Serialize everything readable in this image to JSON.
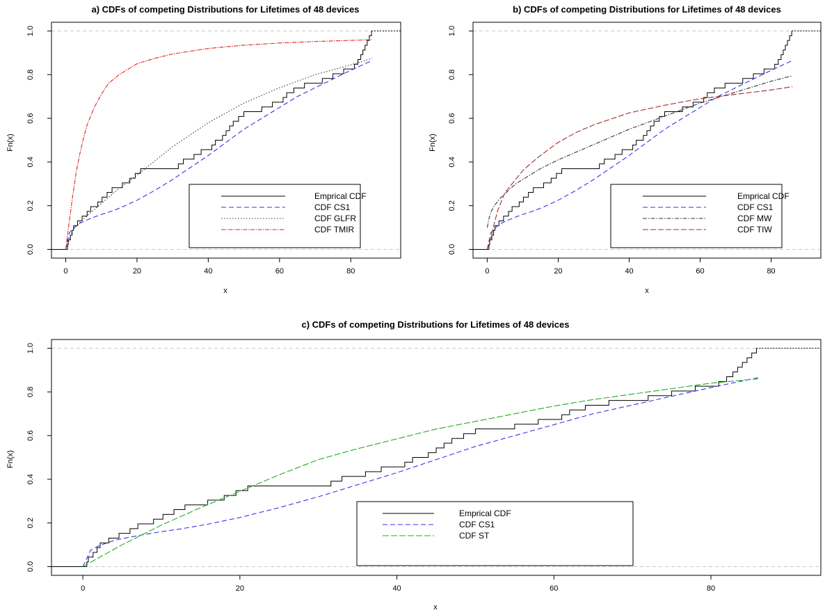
{
  "chart_data": [
    {
      "panel": "a",
      "type": "line",
      "title": "a) CDFs of competing Distributions for Lifetimes of 48 devices",
      "xlabel": "x",
      "ylabel": "Fn(x)",
      "xlim": [
        -4,
        94
      ],
      "ylim": [
        -0.04,
        1.04
      ],
      "xticks": [
        0,
        20,
        40,
        60,
        80
      ],
      "yticks": [
        0.0,
        0.2,
        0.4,
        0.6,
        0.8,
        1.0
      ],
      "xtick_labels": [
        "0",
        "20",
        "40",
        "60",
        "80"
      ],
      "ytick_labels": [
        "0.0",
        "0.2",
        "0.4",
        "0.6",
        "0.8",
        "1.0"
      ],
      "legend_position": "bottom-right",
      "grid": false,
      "series": [
        {
          "name": "Emprical CDF",
          "kind": "ecdf",
          "color": "#000000",
          "dash": "",
          "x": [
            0.5,
            0.7,
            1.3,
            1.8,
            2.2,
            3.3,
            4.6,
            6.0,
            7.0,
            9.0,
            10.2,
            11.6,
            13.0,
            15.9,
            18.0,
            19.5,
            21.0,
            31.6,
            33.0,
            36.0,
            38.0,
            41.0,
            42.0,
            44.0,
            45.0,
            46.0,
            47.0,
            48.5,
            50.0,
            55.0,
            58.0,
            61.0,
            62.0,
            64.0,
            67.0,
            72.0,
            75.0,
            78.0,
            81.0,
            82.0,
            82.8,
            83.4,
            84.0,
            84.6,
            85.2,
            85.8
          ]
        },
        {
          "name": "CDF CS1",
          "kind": "curve",
          "color": "#3333ee",
          "dash": "7,4",
          "x": [
            0,
            1,
            2,
            4,
            6,
            8,
            10,
            12,
            14,
            16,
            18,
            20,
            25,
            30,
            35,
            40,
            45,
            50,
            55,
            60,
            65,
            70,
            75,
            80,
            86
          ],
          "y": [
            0.0,
            0.075,
            0.095,
            0.12,
            0.135,
            0.148,
            0.16,
            0.17,
            0.182,
            0.195,
            0.21,
            0.225,
            0.27,
            0.32,
            0.375,
            0.43,
            0.49,
            0.55,
            0.6,
            0.65,
            0.7,
            0.74,
            0.78,
            0.82,
            0.865
          ]
        },
        {
          "name": "CDF GLFR",
          "kind": "curve",
          "color": "#333333",
          "dash": "1.5,2.5",
          "x": [
            0,
            2,
            5,
            10,
            15,
            20,
            30,
            40,
            50,
            60,
            70,
            80,
            86
          ],
          "y": [
            0.0,
            0.09,
            0.14,
            0.21,
            0.28,
            0.34,
            0.47,
            0.58,
            0.67,
            0.74,
            0.8,
            0.845,
            0.875
          ]
        },
        {
          "name": "CDF TMIR",
          "kind": "curve",
          "color": "#dd2222",
          "dash": "6,1.5,1.5,1.5",
          "x": [
            0,
            1,
            2,
            3,
            4,
            5,
            6,
            8,
            10,
            12,
            15,
            20,
            25,
            30,
            40,
            50,
            60,
            70,
            80,
            86
          ],
          "y": [
            0.0,
            0.13,
            0.25,
            0.36,
            0.44,
            0.51,
            0.57,
            0.65,
            0.71,
            0.76,
            0.8,
            0.85,
            0.875,
            0.895,
            0.92,
            0.935,
            0.945,
            0.952,
            0.957,
            0.96
          ]
        }
      ]
    },
    {
      "panel": "b",
      "type": "line",
      "title": "b) CDFs of competing Distributions for Lifetimes of 48 devices",
      "xlabel": "x",
      "ylabel": "Fn(x)",
      "xlim": [
        -4,
        94
      ],
      "ylim": [
        -0.04,
        1.04
      ],
      "xticks": [
        0,
        20,
        40,
        60,
        80
      ],
      "yticks": [
        0.0,
        0.2,
        0.4,
        0.6,
        0.8,
        1.0
      ],
      "xtick_labels": [
        "0",
        "20",
        "40",
        "60",
        "80"
      ],
      "ytick_labels": [
        "0.0",
        "0.2",
        "0.4",
        "0.6",
        "0.8",
        "1.0"
      ],
      "legend_position": "bottom-right",
      "grid": false,
      "series": [
        {
          "name": "Emprical CDF",
          "kind": "ecdf",
          "color": "#000000",
          "dash": "",
          "x": [
            0.5,
            0.7,
            1.3,
            1.8,
            2.2,
            3.3,
            4.6,
            6.0,
            7.0,
            9.0,
            10.2,
            11.6,
            13.0,
            15.9,
            18.0,
            19.5,
            21.0,
            31.6,
            33.0,
            36.0,
            38.0,
            41.0,
            42.0,
            44.0,
            45.0,
            46.0,
            47.0,
            48.5,
            50.0,
            55.0,
            58.0,
            61.0,
            62.0,
            64.0,
            67.0,
            72.0,
            75.0,
            78.0,
            81.0,
            82.0,
            82.8,
            83.4,
            84.0,
            84.6,
            85.2,
            85.8
          ]
        },
        {
          "name": "CDF CS1",
          "kind": "curve",
          "color": "#3333ee",
          "dash": "7,4",
          "x": [
            0,
            1,
            2,
            4,
            6,
            8,
            10,
            12,
            14,
            16,
            18,
            20,
            25,
            30,
            35,
            40,
            45,
            50,
            55,
            60,
            65,
            70,
            75,
            80,
            86
          ],
          "y": [
            0.0,
            0.075,
            0.095,
            0.12,
            0.135,
            0.148,
            0.16,
            0.17,
            0.182,
            0.195,
            0.21,
            0.225,
            0.27,
            0.32,
            0.375,
            0.43,
            0.49,
            0.55,
            0.6,
            0.65,
            0.7,
            0.74,
            0.78,
            0.82,
            0.865
          ]
        },
        {
          "name": "CDF MW",
          "kind": "curve",
          "color": "#333333",
          "dash": "6,2,1.5,2",
          "x": [
            0,
            0.5,
            1,
            2,
            4,
            6,
            8,
            10,
            15,
            20,
            30,
            40,
            50,
            60,
            70,
            80,
            86
          ],
          "y": [
            0.1,
            0.14,
            0.17,
            0.2,
            0.24,
            0.27,
            0.3,
            0.32,
            0.37,
            0.41,
            0.48,
            0.55,
            0.61,
            0.67,
            0.72,
            0.77,
            0.795
          ]
        },
        {
          "name": "CDF TIW",
          "kind": "curve",
          "color": "#a52a2a",
          "dash": "8,3",
          "x": [
            0,
            1,
            2,
            3,
            5,
            7,
            10,
            12,
            15,
            20,
            25,
            30,
            40,
            50,
            60,
            70,
            80,
            86
          ],
          "y": [
            0.0,
            0.05,
            0.12,
            0.18,
            0.26,
            0.3,
            0.36,
            0.39,
            0.43,
            0.49,
            0.535,
            0.57,
            0.625,
            0.66,
            0.69,
            0.71,
            0.73,
            0.745
          ]
        }
      ]
    },
    {
      "panel": "c",
      "type": "line",
      "title": "c) CDFs of competing Distributions for Lifetimes of 48 devices",
      "xlabel": "x",
      "ylabel": "Fn(x)",
      "xlim": [
        -4,
        94
      ],
      "ylim": [
        -0.04,
        1.04
      ],
      "xticks": [
        0,
        20,
        40,
        60,
        80
      ],
      "yticks": [
        0.0,
        0.2,
        0.4,
        0.6,
        0.8,
        1.0
      ],
      "xtick_labels": [
        "0",
        "20",
        "40",
        "60",
        "80"
      ],
      "ytick_labels": [
        "0.0",
        "0.2",
        "0.4",
        "0.6",
        "0.8",
        "1.0"
      ],
      "legend_position": "bottom-center",
      "grid": false,
      "series": [
        {
          "name": "Emprical CDF",
          "kind": "ecdf",
          "color": "#000000",
          "dash": "",
          "x": [
            0.5,
            0.7,
            1.3,
            1.8,
            2.2,
            3.3,
            4.6,
            6.0,
            7.0,
            9.0,
            10.2,
            11.6,
            13.0,
            15.9,
            18.0,
            19.5,
            21.0,
            31.6,
            33.0,
            36.0,
            38.0,
            41.0,
            42.0,
            44.0,
            45.0,
            46.0,
            47.0,
            48.5,
            50.0,
            55.0,
            58.0,
            61.0,
            62.0,
            64.0,
            67.0,
            72.0,
            75.0,
            78.0,
            81.0,
            82.0,
            82.8,
            83.4,
            84.0,
            84.6,
            85.2,
            85.8
          ]
        },
        {
          "name": "CDF CS1",
          "kind": "curve",
          "color": "#3333ee",
          "dash": "7,4",
          "x": [
            0,
            1,
            2,
            4,
            6,
            8,
            10,
            12,
            14,
            16,
            18,
            20,
            25,
            30,
            35,
            40,
            45,
            50,
            55,
            60,
            65,
            70,
            75,
            80,
            86
          ],
          "y": [
            0.0,
            0.075,
            0.095,
            0.12,
            0.135,
            0.148,
            0.16,
            0.17,
            0.182,
            0.195,
            0.21,
            0.225,
            0.27,
            0.32,
            0.375,
            0.43,
            0.49,
            0.55,
            0.6,
            0.65,
            0.7,
            0.74,
            0.78,
            0.82,
            0.865
          ]
        },
        {
          "name": "CDF ST",
          "kind": "curve",
          "color": "#22aa22",
          "dash": "9,3",
          "x": [
            0,
            2,
            5,
            10,
            15,
            20,
            25,
            30,
            35,
            40,
            45,
            50,
            55,
            60,
            65,
            70,
            75,
            80,
            86
          ],
          "y": [
            0.0,
            0.04,
            0.1,
            0.19,
            0.27,
            0.345,
            0.42,
            0.49,
            0.54,
            0.585,
            0.63,
            0.665,
            0.7,
            0.735,
            0.765,
            0.79,
            0.815,
            0.84,
            0.86
          ]
        }
      ]
    }
  ]
}
